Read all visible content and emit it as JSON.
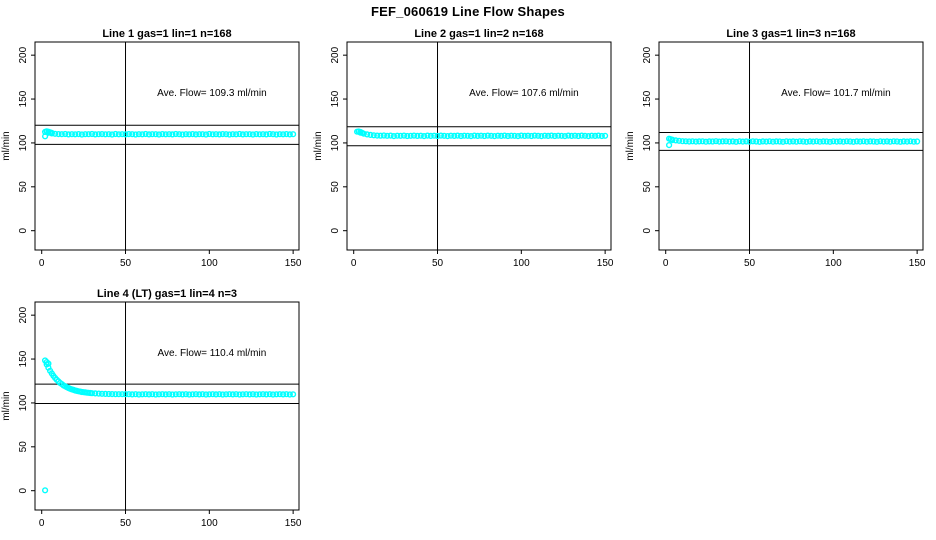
{
  "main_title": "FEF_060619  Line Flow Shapes",
  "colors": {
    "points": "#00FFFF",
    "lines": "#000000",
    "background": "#FFFFFF",
    "text": "#000000"
  },
  "axes": {
    "ylabel": "ml/min",
    "x_ticks": [
      0,
      50,
      100,
      150
    ],
    "y_ticks": [
      0,
      50,
      100,
      150,
      200
    ],
    "xlim": [
      -4,
      153.5
    ],
    "ylim": [
      -22,
      215
    ],
    "vline_x": 50
  },
  "chart_data": [
    {
      "type": "scatter",
      "title": "Line 1 gas=1 lin=1 n=168",
      "annotation": "Ave. Flow=  109.3  ml/min",
      "ave_flow": 109.3,
      "hlines": [
        120.2,
        98.4
      ],
      "points": [
        [
          2,
          112.6
        ],
        [
          4,
          111.5
        ],
        [
          6,
          110.8
        ],
        [
          8,
          110.4
        ],
        [
          10,
          110.1
        ],
        [
          12,
          109.9
        ],
        [
          14,
          110.2
        ],
        [
          16,
          109.7
        ],
        [
          18,
          110.0
        ],
        [
          20,
          109.8
        ],
        [
          22,
          110.1
        ],
        [
          24,
          109.6
        ],
        [
          26,
          110.0
        ],
        [
          28,
          109.9
        ],
        [
          30,
          110.2
        ],
        [
          32,
          109.7
        ],
        [
          34,
          109.9
        ],
        [
          36,
          110.1
        ],
        [
          38,
          109.8
        ],
        [
          40,
          110.0
        ],
        [
          42,
          109.6
        ],
        [
          44,
          110.2
        ],
        [
          46,
          109.8
        ],
        [
          48,
          110.0
        ],
        [
          50,
          109.7
        ],
        [
          52,
          110.1
        ],
        [
          54,
          109.9
        ],
        [
          56,
          109.6
        ],
        [
          58,
          110.0
        ],
        [
          60,
          109.8
        ],
        [
          62,
          110.2
        ],
        [
          64,
          109.7
        ],
        [
          66,
          110.0
        ],
        [
          68,
          109.9
        ],
        [
          70,
          109.6
        ],
        [
          72,
          110.1
        ],
        [
          74,
          109.8
        ],
        [
          76,
          110.0
        ],
        [
          78,
          109.7
        ],
        [
          80,
          110.2
        ],
        [
          82,
          109.9
        ],
        [
          84,
          109.6
        ],
        [
          86,
          110.0
        ],
        [
          88,
          109.8
        ],
        [
          90,
          110.1
        ],
        [
          92,
          109.7
        ],
        [
          94,
          110.0
        ],
        [
          96,
          109.9
        ],
        [
          98,
          109.6
        ],
        [
          100,
          110.2
        ],
        [
          102,
          109.8
        ],
        [
          104,
          110.0
        ],
        [
          106,
          109.7
        ],
        [
          108,
          110.1
        ],
        [
          110,
          109.9
        ],
        [
          112,
          109.6
        ],
        [
          114,
          110.0
        ],
        [
          116,
          109.8
        ],
        [
          118,
          110.2
        ],
        [
          120,
          109.7
        ],
        [
          122,
          110.0
        ],
        [
          124,
          109.9
        ],
        [
          126,
          109.6
        ],
        [
          128,
          110.1
        ],
        [
          130,
          109.8
        ],
        [
          132,
          110.0
        ],
        [
          134,
          109.7
        ],
        [
          136,
          110.2
        ],
        [
          138,
          109.9
        ],
        [
          140,
          109.6
        ],
        [
          142,
          110.0
        ],
        [
          144,
          109.8
        ],
        [
          146,
          110.1
        ],
        [
          148,
          109.7
        ],
        [
          150,
          109.9
        ]
      ],
      "extra_points": [
        [
          2,
          107.5
        ],
        [
          3,
          113.2
        ],
        [
          4,
          112.8
        ],
        [
          5,
          112.0
        ],
        [
          6,
          111.4
        ]
      ]
    },
    {
      "type": "scatter",
      "title": "Line 2 gas=1 lin=2 n=168",
      "annotation": "Ave. Flow=  107.6  ml/min",
      "ave_flow": 107.6,
      "hlines": [
        118.4,
        96.8
      ],
      "points": [
        [
          2,
          112.8
        ],
        [
          4,
          111.6
        ],
        [
          6,
          110.5
        ],
        [
          8,
          109.7
        ],
        [
          10,
          109.1
        ],
        [
          12,
          108.7
        ],
        [
          14,
          108.4
        ],
        [
          16,
          108.2
        ],
        [
          18,
          108.5
        ],
        [
          20,
          108.1
        ],
        [
          22,
          108.3
        ],
        [
          24,
          107.8
        ],
        [
          26,
          108.2
        ],
        [
          28,
          108.1
        ],
        [
          30,
          108.4
        ],
        [
          32,
          107.9
        ],
        [
          34,
          108.1
        ],
        [
          36,
          108.3
        ],
        [
          38,
          108.0
        ],
        [
          40,
          108.2
        ],
        [
          42,
          107.8
        ],
        [
          44,
          108.4
        ],
        [
          46,
          108.0
        ],
        [
          48,
          108.2
        ],
        [
          50,
          107.9
        ],
        [
          52,
          108.3
        ],
        [
          54,
          108.1
        ],
        [
          56,
          107.8
        ],
        [
          58,
          108.2
        ],
        [
          60,
          108.0
        ],
        [
          62,
          108.4
        ],
        [
          64,
          107.9
        ],
        [
          66,
          108.2
        ],
        [
          68,
          108.1
        ],
        [
          70,
          107.8
        ],
        [
          72,
          108.3
        ],
        [
          74,
          108.0
        ],
        [
          76,
          108.2
        ],
        [
          78,
          107.9
        ],
        [
          80,
          108.4
        ],
        [
          82,
          108.1
        ],
        [
          84,
          107.8
        ],
        [
          86,
          108.2
        ],
        [
          88,
          108.0
        ],
        [
          90,
          108.3
        ],
        [
          92,
          107.9
        ],
        [
          94,
          108.2
        ],
        [
          96,
          108.1
        ],
        [
          98,
          107.8
        ],
        [
          100,
          108.4
        ],
        [
          102,
          108.0
        ],
        [
          104,
          108.2
        ],
        [
          106,
          107.9
        ],
        [
          108,
          108.3
        ],
        [
          110,
          108.1
        ],
        [
          112,
          107.8
        ],
        [
          114,
          108.2
        ],
        [
          116,
          108.0
        ],
        [
          118,
          108.4
        ],
        [
          120,
          107.9
        ],
        [
          122,
          108.2
        ],
        [
          124,
          108.1
        ],
        [
          126,
          107.8
        ],
        [
          128,
          108.3
        ],
        [
          130,
          108.0
        ],
        [
          132,
          108.2
        ],
        [
          134,
          107.9
        ],
        [
          136,
          108.4
        ],
        [
          138,
          108.1
        ],
        [
          140,
          107.8
        ],
        [
          142,
          108.2
        ],
        [
          144,
          108.0
        ],
        [
          146,
          108.3
        ],
        [
          148,
          107.9
        ],
        [
          150,
          108.1
        ]
      ],
      "extra_points": [
        [
          3,
          113.0
        ],
        [
          4,
          112.4
        ],
        [
          5,
          111.5
        ]
      ]
    },
    {
      "type": "scatter",
      "title": "Line 3 gas=1 lin=3 n=168",
      "annotation": "Ave. Flow=  101.7  ml/min",
      "ave_flow": 101.7,
      "hlines": [
        111.9,
        91.5
      ],
      "points": [
        [
          2,
          104.8
        ],
        [
          4,
          103.7
        ],
        [
          6,
          102.9
        ],
        [
          8,
          102.4
        ],
        [
          10,
          102.0
        ],
        [
          12,
          101.8
        ],
        [
          14,
          101.6
        ],
        [
          16,
          101.9
        ],
        [
          18,
          101.5
        ],
        [
          20,
          101.7
        ],
        [
          22,
          101.9
        ],
        [
          24,
          101.4
        ],
        [
          26,
          101.7
        ],
        [
          28,
          101.6
        ],
        [
          30,
          102.0
        ],
        [
          32,
          101.5
        ],
        [
          34,
          101.7
        ],
        [
          36,
          101.8
        ],
        [
          38,
          101.5
        ],
        [
          40,
          101.7
        ],
        [
          42,
          101.3
        ],
        [
          44,
          101.9
        ],
        [
          46,
          101.5
        ],
        [
          48,
          101.7
        ],
        [
          50,
          101.4
        ],
        [
          52,
          101.8
        ],
        [
          54,
          101.6
        ],
        [
          56,
          101.3
        ],
        [
          58,
          101.7
        ],
        [
          60,
          101.5
        ],
        [
          62,
          101.9
        ],
        [
          64,
          101.4
        ],
        [
          66,
          101.7
        ],
        [
          68,
          101.6
        ],
        [
          70,
          101.3
        ],
        [
          72,
          101.8
        ],
        [
          74,
          101.5
        ],
        [
          76,
          101.7
        ],
        [
          78,
          101.4
        ],
        [
          80,
          101.9
        ],
        [
          82,
          101.6
        ],
        [
          84,
          101.3
        ],
        [
          86,
          101.7
        ],
        [
          88,
          101.5
        ],
        [
          90,
          101.8
        ],
        [
          92,
          101.4
        ],
        [
          94,
          101.7
        ],
        [
          96,
          101.6
        ],
        [
          98,
          101.3
        ],
        [
          100,
          101.9
        ],
        [
          102,
          101.5
        ],
        [
          104,
          101.7
        ],
        [
          106,
          101.4
        ],
        [
          108,
          101.8
        ],
        [
          110,
          101.6
        ],
        [
          112,
          101.3
        ],
        [
          114,
          101.7
        ],
        [
          116,
          101.5
        ],
        [
          118,
          101.9
        ],
        [
          120,
          101.4
        ],
        [
          122,
          101.7
        ],
        [
          124,
          101.6
        ],
        [
          126,
          101.3
        ],
        [
          128,
          101.8
        ],
        [
          130,
          101.5
        ],
        [
          132,
          101.7
        ],
        [
          134,
          101.4
        ],
        [
          136,
          101.9
        ],
        [
          138,
          101.6
        ],
        [
          140,
          101.3
        ],
        [
          142,
          101.7
        ],
        [
          144,
          101.5
        ],
        [
          146,
          101.8
        ],
        [
          148,
          101.4
        ],
        [
          150,
          101.6
        ]
      ],
      "extra_points": [
        [
          2,
          97.5
        ],
        [
          3,
          104.2
        ],
        [
          4,
          103.2
        ]
      ]
    },
    {
      "type": "scatter",
      "title": "Line 4 (LT) gas=1 lin=4 n=3",
      "annotation": "Ave. Flow=  110.4  ml/min",
      "ave_flow": 110.4,
      "hlines": [
        121.4,
        99.4
      ],
      "points": [
        [
          2,
          148.3
        ],
        [
          3,
          143.9
        ],
        [
          4,
          140.1
        ],
        [
          5,
          136.6
        ],
        [
          6,
          133.6
        ],
        [
          7,
          130.9
        ],
        [
          8,
          128.5
        ],
        [
          9,
          126.4
        ],
        [
          10,
          124.5
        ],
        [
          11,
          122.8
        ],
        [
          12,
          121.4
        ],
        [
          13,
          120.0
        ],
        [
          14,
          118.9
        ],
        [
          15,
          117.9
        ],
        [
          16,
          117.0
        ],
        [
          17,
          116.1
        ],
        [
          18,
          115.4
        ],
        [
          19,
          114.8
        ],
        [
          20,
          114.2
        ],
        [
          21,
          113.7
        ],
        [
          22,
          113.3
        ],
        [
          23,
          112.9
        ],
        [
          24,
          112.5
        ],
        [
          25,
          112.2
        ],
        [
          26,
          112.0
        ],
        [
          27,
          111.7
        ],
        [
          28,
          111.5
        ],
        [
          29,
          111.3
        ],
        [
          30,
          111.1
        ],
        [
          32,
          110.8
        ],
        [
          34,
          110.6
        ],
        [
          36,
          110.4
        ],
        [
          38,
          110.3
        ],
        [
          40,
          110.2
        ],
        [
          42,
          110.1
        ],
        [
          44,
          110.0
        ],
        [
          46,
          110.0
        ],
        [
          48,
          109.9
        ],
        [
          50,
          109.9
        ],
        [
          52,
          110.0
        ],
        [
          54,
          109.7
        ],
        [
          56,
          109.9
        ],
        [
          58,
          109.6
        ],
        [
          60,
          109.8
        ],
        [
          62,
          110.0
        ],
        [
          64,
          109.7
        ],
        [
          66,
          109.9
        ],
        [
          68,
          109.6
        ],
        [
          70,
          109.8
        ],
        [
          72,
          110.0
        ],
        [
          74,
          109.7
        ],
        [
          76,
          109.9
        ],
        [
          78,
          109.6
        ],
        [
          80,
          109.8
        ],
        [
          82,
          110.0
        ],
        [
          84,
          109.7
        ],
        [
          86,
          109.9
        ],
        [
          88,
          109.6
        ],
        [
          90,
          109.8
        ],
        [
          92,
          109.9
        ],
        [
          94,
          109.7
        ],
        [
          96,
          110.0
        ],
        [
          98,
          109.6
        ],
        [
          100,
          109.8
        ],
        [
          102,
          109.9
        ],
        [
          104,
          109.7
        ],
        [
          106,
          110.0
        ],
        [
          108,
          109.6
        ],
        [
          110,
          109.8
        ],
        [
          112,
          109.9
        ],
        [
          114,
          109.7
        ],
        [
          116,
          110.0
        ],
        [
          118,
          109.6
        ],
        [
          120,
          109.8
        ],
        [
          122,
          109.9
        ],
        [
          124,
          109.7
        ],
        [
          126,
          110.0
        ],
        [
          128,
          109.6
        ],
        [
          130,
          109.8
        ],
        [
          132,
          109.9
        ],
        [
          134,
          109.7
        ],
        [
          136,
          110.0
        ],
        [
          138,
          109.6
        ],
        [
          140,
          109.8
        ],
        [
          142,
          109.9
        ],
        [
          144,
          109.7
        ],
        [
          146,
          110.0
        ],
        [
          148,
          109.6
        ],
        [
          150,
          109.8
        ]
      ],
      "extra_points": [
        [
          2,
          0.5
        ],
        [
          3,
          146.5
        ],
        [
          4,
          144.8
        ]
      ]
    }
  ]
}
